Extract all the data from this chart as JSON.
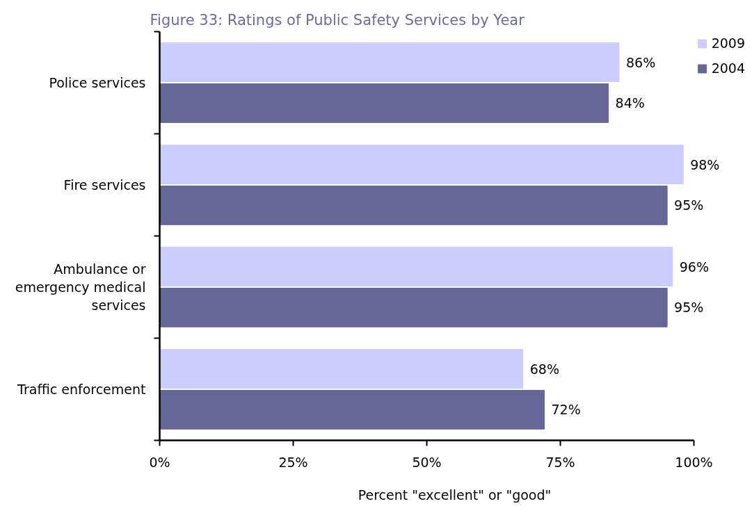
{
  "chart_data": {
    "type": "bar",
    "orientation": "horizontal",
    "title": "Figure 33: Ratings of Public Safety Services by Year",
    "xlabel": "Percent \"excellent\" or \"good\"",
    "categories": [
      "Police services",
      "Fire services",
      "Ambulance or emergency medical services",
      "Traffic enforcement"
    ],
    "series": [
      {
        "name": "2009",
        "color": "#ccccff",
        "values": [
          86,
          98,
          96,
          68
        ],
        "value_labels": [
          "86%",
          "98%",
          "96%",
          "68%"
        ]
      },
      {
        "name": "2004",
        "color": "#666699",
        "values": [
          84,
          95,
          95,
          72
        ],
        "value_labels": [
          "84%",
          "95%",
          "95%",
          "72%"
        ]
      }
    ],
    "xlim": [
      0,
      100
    ],
    "xticks": [
      {
        "value": 0,
        "label": "0%"
      },
      {
        "value": 25,
        "label": "25%"
      },
      {
        "value": 50,
        "label": "50%"
      },
      {
        "value": 75,
        "label": "75%"
      },
      {
        "value": 100,
        "label": "100%"
      }
    ],
    "legend": "top right"
  }
}
